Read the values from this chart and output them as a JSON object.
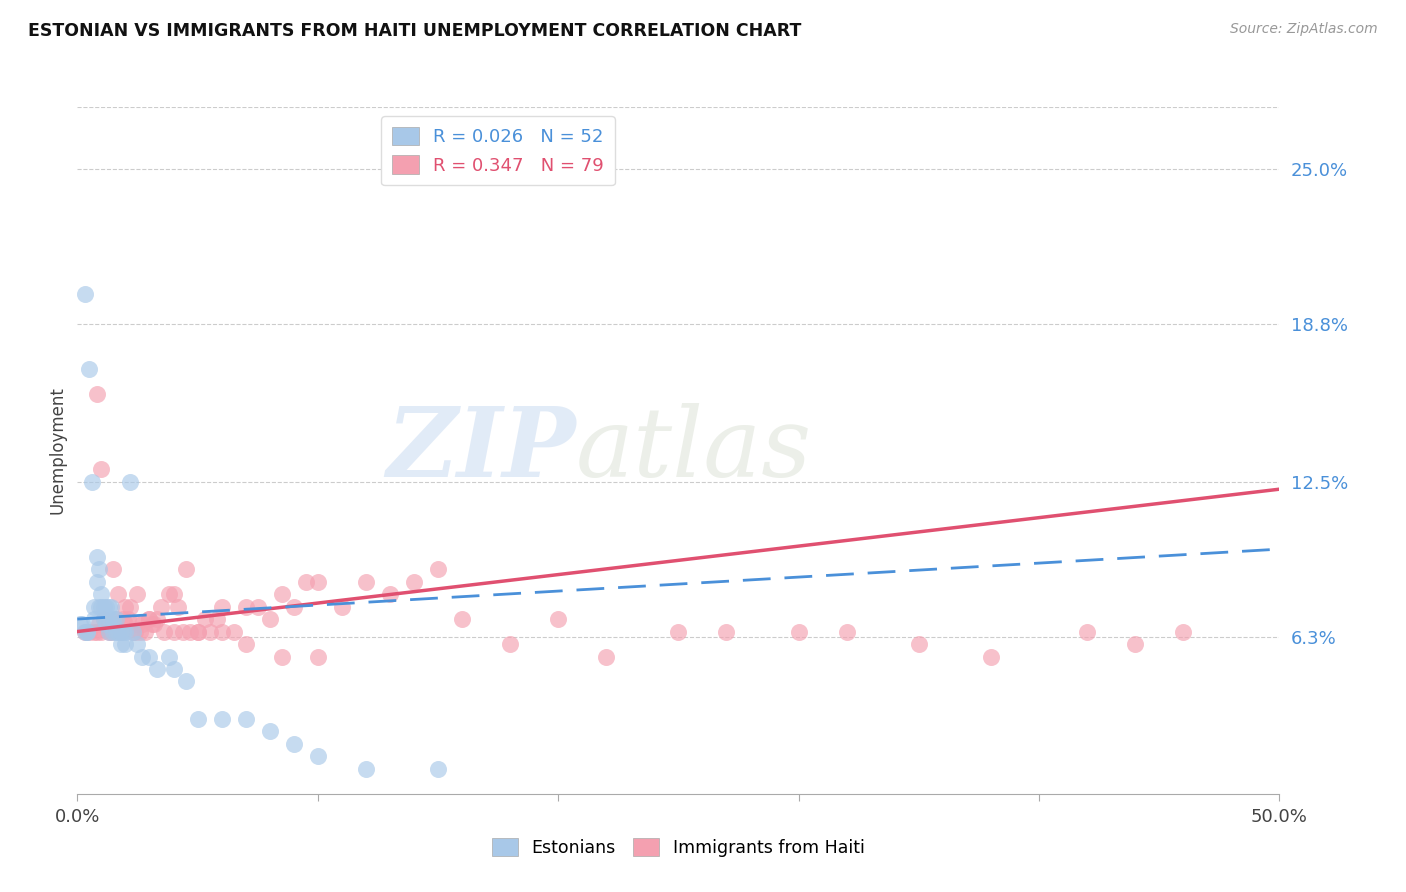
{
  "title": "ESTONIAN VS IMMIGRANTS FROM HAITI UNEMPLOYMENT CORRELATION CHART",
  "source": "Source: ZipAtlas.com",
  "ylabel": "Unemployment",
  "ytick_labels": [
    "25.0%",
    "18.8%",
    "12.5%",
    "6.3%"
  ],
  "ytick_values": [
    0.25,
    0.188,
    0.125,
    0.063
  ],
  "xlim": [
    0.0,
    0.5
  ],
  "ylim": [
    0.0,
    0.275
  ],
  "watermark_zip": "ZIP",
  "watermark_atlas": "atlas",
  "estonian_color": "#a8c8e8",
  "haiti_color": "#f4a0b0",
  "estonian_line_color": "#4a90d9",
  "haiti_line_color": "#e05070",
  "grid_color": "#cccccc",
  "R_estonian": 0.026,
  "N_estonian": 52,
  "R_haiti": 0.347,
  "N_haiti": 79,
  "haiti_line_x0": 0.0,
  "haiti_line_y0": 0.065,
  "haiti_line_x1": 0.5,
  "haiti_line_y1": 0.122,
  "est_line_x0": 0.0,
  "est_line_y0": 0.07,
  "est_line_x1": 0.5,
  "est_line_y1": 0.098,
  "estonian_x": [
    0.001,
    0.002,
    0.003,
    0.004,
    0.005,
    0.006,
    0.007,
    0.007,
    0.008,
    0.008,
    0.009,
    0.009,
    0.01,
    0.01,
    0.011,
    0.011,
    0.012,
    0.012,
    0.013,
    0.013,
    0.013,
    0.014,
    0.015,
    0.015,
    0.015,
    0.016,
    0.016,
    0.017,
    0.018,
    0.018,
    0.019,
    0.02,
    0.02,
    0.022,
    0.023,
    0.025,
    0.027,
    0.03,
    0.033,
    0.038,
    0.04,
    0.045,
    0.05,
    0.06,
    0.07,
    0.08,
    0.09,
    0.1,
    0.12,
    0.15,
    0.003,
    0.004
  ],
  "estonian_y": [
    0.068,
    0.068,
    0.2,
    0.065,
    0.17,
    0.125,
    0.075,
    0.07,
    0.095,
    0.085,
    0.075,
    0.09,
    0.075,
    0.08,
    0.075,
    0.07,
    0.075,
    0.068,
    0.075,
    0.07,
    0.065,
    0.075,
    0.068,
    0.07,
    0.065,
    0.07,
    0.065,
    0.065,
    0.065,
    0.06,
    0.065,
    0.065,
    0.06,
    0.125,
    0.065,
    0.06,
    0.055,
    0.055,
    0.05,
    0.055,
    0.05,
    0.045,
    0.03,
    0.03,
    0.03,
    0.025,
    0.02,
    0.015,
    0.01,
    0.01,
    0.065,
    0.065
  ],
  "haiti_x": [
    0.003,
    0.005,
    0.007,
    0.008,
    0.009,
    0.01,
    0.011,
    0.012,
    0.013,
    0.014,
    0.015,
    0.016,
    0.017,
    0.018,
    0.019,
    0.02,
    0.021,
    0.022,
    0.023,
    0.024,
    0.025,
    0.026,
    0.027,
    0.028,
    0.03,
    0.031,
    0.032,
    0.033,
    0.035,
    0.036,
    0.038,
    0.04,
    0.042,
    0.044,
    0.045,
    0.047,
    0.05,
    0.053,
    0.055,
    0.058,
    0.06,
    0.065,
    0.07,
    0.075,
    0.08,
    0.085,
    0.09,
    0.095,
    0.1,
    0.11,
    0.12,
    0.13,
    0.14,
    0.15,
    0.16,
    0.18,
    0.2,
    0.22,
    0.25,
    0.27,
    0.3,
    0.32,
    0.35,
    0.38,
    0.42,
    0.44,
    0.46,
    0.008,
    0.01,
    0.015,
    0.02,
    0.025,
    0.03,
    0.04,
    0.05,
    0.06,
    0.07,
    0.085,
    0.1
  ],
  "haiti_y": [
    0.065,
    0.065,
    0.065,
    0.065,
    0.068,
    0.065,
    0.07,
    0.068,
    0.065,
    0.065,
    0.068,
    0.07,
    0.08,
    0.065,
    0.07,
    0.068,
    0.07,
    0.075,
    0.065,
    0.065,
    0.068,
    0.065,
    0.068,
    0.065,
    0.07,
    0.068,
    0.068,
    0.07,
    0.075,
    0.065,
    0.08,
    0.08,
    0.075,
    0.065,
    0.09,
    0.065,
    0.065,
    0.07,
    0.065,
    0.07,
    0.075,
    0.065,
    0.075,
    0.075,
    0.07,
    0.08,
    0.075,
    0.085,
    0.085,
    0.075,
    0.085,
    0.08,
    0.085,
    0.09,
    0.07,
    0.06,
    0.07,
    0.055,
    0.065,
    0.065,
    0.065,
    0.065,
    0.06,
    0.055,
    0.065,
    0.06,
    0.065,
    0.16,
    0.13,
    0.09,
    0.075,
    0.08,
    0.07,
    0.065,
    0.065,
    0.065,
    0.06,
    0.055,
    0.055
  ]
}
